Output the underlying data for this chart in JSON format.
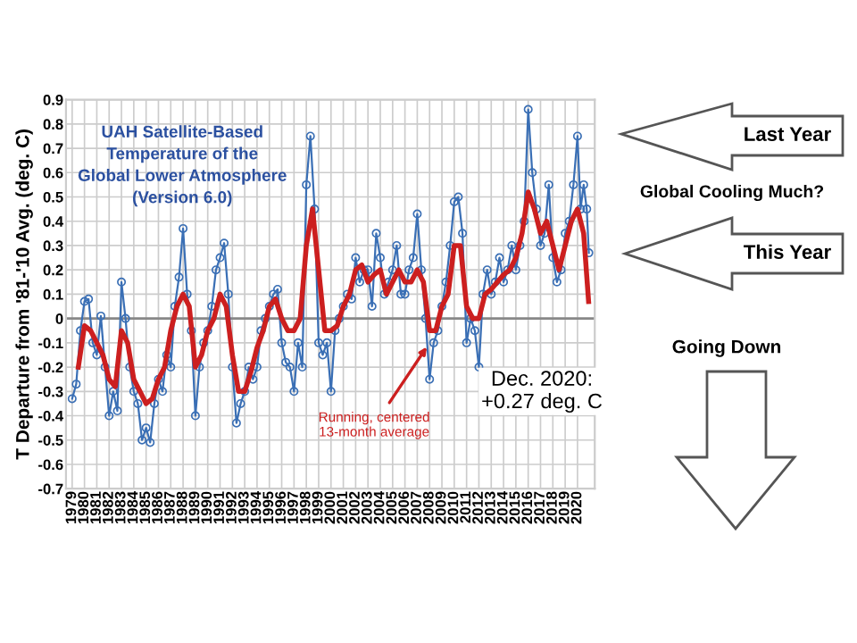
{
  "chart_data": {
    "type": "line",
    "title": "UAH Satellite-Based\nTemperature of the\nGlobal Lower Atmosphere\n(Version 6.0)",
    "ylabel": "T Departure from '81-'10 Avg. (deg. C)",
    "series": [
      {
        "color": "#3a6fb5",
        "marker": "circle",
        "x": [
          1979.0,
          1979.33,
          1979.67,
          1980.0,
          1980.33,
          1980.67,
          1981.0,
          1981.33,
          1981.67,
          1982.0,
          1982.33,
          1982.67,
          1983.0,
          1983.33,
          1983.67,
          1984.0,
          1984.33,
          1984.67,
          1985.0,
          1985.33,
          1985.67,
          1986.0,
          1986.33,
          1986.67,
          1987.0,
          1987.33,
          1987.67,
          1988.0,
          1988.33,
          1988.67,
          1989.0,
          1989.33,
          1989.67,
          1990.0,
          1990.33,
          1990.67,
          1991.0,
          1991.33,
          1991.67,
          1992.0,
          1992.33,
          1992.67,
          1993.0,
          1993.33,
          1993.67,
          1994.0,
          1994.33,
          1994.67,
          1995.0,
          1995.33,
          1995.67,
          1996.0,
          1996.33,
          1996.67,
          1997.0,
          1997.33,
          1997.67,
          1998.0,
          1998.33,
          1998.67,
          1999.0,
          1999.33,
          1999.67,
          2000.0,
          2000.33,
          2000.67,
          2001.0,
          2001.33,
          2001.67,
          2002.0,
          2002.33,
          2002.67,
          2003.0,
          2003.33,
          2003.67,
          2004.0,
          2004.33,
          2004.67,
          2005.0,
          2005.33,
          2005.67,
          2006.0,
          2006.33,
          2006.67,
          2007.0,
          2007.33,
          2007.67,
          2008.0,
          2008.33,
          2008.67,
          2009.0,
          2009.33,
          2009.67,
          2010.0,
          2010.33,
          2010.67,
          2011.0,
          2011.33,
          2011.67,
          2012.0,
          2012.33,
          2012.67,
          2013.0,
          2013.33,
          2013.67,
          2014.0,
          2014.33,
          2014.67,
          2015.0,
          2015.33,
          2015.67,
          2016.0,
          2016.33,
          2016.67,
          2017.0,
          2017.33,
          2017.67,
          2018.0,
          2018.33,
          2018.67,
          2019.0,
          2019.33,
          2019.67,
          2020.0,
          2020.25,
          2020.5,
          2020.75,
          2020.92
        ],
        "values": [
          -0.33,
          -0.27,
          -0.05,
          0.07,
          0.08,
          -0.1,
          -0.15,
          0.01,
          -0.2,
          -0.4,
          -0.3,
          -0.38,
          0.15,
          0.0,
          -0.2,
          -0.3,
          -0.35,
          -0.5,
          -0.45,
          -0.51,
          -0.35,
          -0.25,
          -0.3,
          -0.15,
          -0.2,
          0.05,
          0.17,
          0.37,
          0.1,
          -0.05,
          -0.4,
          -0.2,
          -0.1,
          -0.05,
          0.05,
          0.2,
          0.25,
          0.31,
          0.1,
          -0.2,
          -0.43,
          -0.35,
          -0.3,
          -0.2,
          -0.25,
          -0.2,
          -0.05,
          0.0,
          0.05,
          0.1,
          0.12,
          -0.1,
          -0.18,
          -0.2,
          -0.3,
          -0.1,
          -0.2,
          0.55,
          0.75,
          0.45,
          -0.1,
          -0.15,
          -0.1,
          -0.3,
          -0.05,
          0.0,
          0.05,
          0.1,
          0.08,
          0.25,
          0.15,
          0.2,
          0.2,
          0.05,
          0.35,
          0.25,
          0.1,
          0.15,
          0.2,
          0.3,
          0.1,
          0.1,
          0.2,
          0.25,
          0.43,
          0.2,
          0.0,
          -0.25,
          -0.1,
          -0.05,
          0.05,
          0.15,
          0.3,
          0.48,
          0.5,
          0.35,
          -0.1,
          0.0,
          -0.05,
          -0.2,
          0.1,
          0.2,
          0.1,
          0.15,
          0.25,
          0.15,
          0.2,
          0.3,
          0.2,
          0.3,
          0.4,
          0.86,
          0.6,
          0.45,
          0.3,
          0.35,
          0.55,
          0.25,
          0.15,
          0.2,
          0.35,
          0.4,
          0.55,
          0.75,
          0.45,
          0.55,
          0.45,
          0.27
        ]
      },
      {
        "color": "#cc1f1f",
        "marker": "none",
        "x": [
          1979.5,
          1980.0,
          1980.5,
          1981.0,
          1981.5,
          1982.0,
          1982.5,
          1983.0,
          1983.5,
          1984.0,
          1984.5,
          1985.0,
          1985.5,
          1986.0,
          1986.5,
          1987.0,
          1987.5,
          1988.0,
          1988.5,
          1989.0,
          1989.5,
          1990.0,
          1990.5,
          1991.0,
          1991.5,
          1992.0,
          1992.5,
          1993.0,
          1993.5,
          1994.0,
          1994.5,
          1995.0,
          1995.5,
          1996.0,
          1996.5,
          1997.0,
          1997.5,
          1998.0,
          1998.5,
          1999.0,
          1999.5,
          2000.0,
          2000.5,
          2001.0,
          2001.5,
          2002.0,
          2002.5,
          2003.0,
          2003.5,
          2004.0,
          2004.5,
          2005.0,
          2005.5,
          2006.0,
          2006.5,
          2007.0,
          2007.5,
          2008.0,
          2008.5,
          2009.0,
          2009.5,
          2010.0,
          2010.5,
          2011.0,
          2011.5,
          2012.0,
          2012.5,
          2013.0,
          2013.5,
          2014.0,
          2014.5,
          2015.0,
          2015.5,
          2016.0,
          2016.5,
          2017.0,
          2017.5,
          2018.0,
          2018.5,
          2019.0,
          2019.5,
          2020.0,
          2020.5,
          2020.9
        ],
        "values": [
          -0.2,
          -0.03,
          -0.05,
          -0.1,
          -0.15,
          -0.25,
          -0.28,
          -0.05,
          -0.1,
          -0.25,
          -0.3,
          -0.35,
          -0.33,
          -0.25,
          -0.2,
          -0.05,
          0.05,
          0.1,
          0.05,
          -0.2,
          -0.15,
          -0.05,
          0.0,
          0.1,
          0.05,
          -0.15,
          -0.3,
          -0.3,
          -0.22,
          -0.12,
          -0.05,
          0.05,
          0.08,
          0.0,
          -0.05,
          -0.05,
          0.0,
          0.3,
          0.45,
          0.2,
          -0.05,
          -0.05,
          -0.03,
          0.05,
          0.1,
          0.2,
          0.22,
          0.15,
          0.18,
          0.2,
          0.1,
          0.15,
          0.2,
          0.15,
          0.15,
          0.2,
          0.15,
          -0.05,
          -0.05,
          0.05,
          0.1,
          0.3,
          0.3,
          0.05,
          0.0,
          0.0,
          0.1,
          0.12,
          0.15,
          0.18,
          0.2,
          0.25,
          0.35,
          0.52,
          0.45,
          0.35,
          0.4,
          0.3,
          0.2,
          0.3,
          0.4,
          0.45,
          0.35,
          0.07
        ]
      }
    ],
    "xlim": [
      1978.5,
      2021.4
    ],
    "xticks": [
      1979,
      1980,
      1981,
      1982,
      1983,
      1984,
      1985,
      1986,
      1987,
      1988,
      1989,
      1990,
      1991,
      1992,
      1993,
      1994,
      1995,
      1996,
      1997,
      1998,
      1999,
      2000,
      2001,
      2002,
      2003,
      2004,
      2005,
      2006,
      2007,
      2008,
      2009,
      2010,
      2011,
      2012,
      2013,
      2014,
      2015,
      2016,
      2017,
      2018,
      2019,
      2020
    ],
    "ylim": [
      -0.7,
      0.9
    ],
    "yticks": [
      -0.7,
      -0.6,
      -0.5,
      -0.4,
      -0.3,
      -0.2,
      -0.1,
      0,
      0.1,
      0.2,
      0.3,
      0.4,
      0.5,
      0.6,
      0.7,
      0.8,
      0.9
    ],
    "grid": true,
    "ref_lines": [
      {
        "axis": "y",
        "value": 0,
        "color": "#888888"
      }
    ],
    "annotations": [
      {
        "text": "Running, centered\n13-month average",
        "x": 2008,
        "y": -0.1
      },
      "Dec. 2020:\n+0.27 deg. C",
      "Last Year",
      "Global Cooling Much?",
      "This Year",
      "Going Down"
    ]
  }
}
